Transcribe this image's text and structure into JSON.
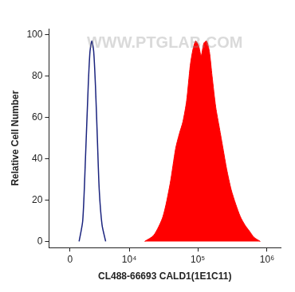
{
  "chart_data": {
    "type": "histogram",
    "x_label": "CL488-66693 CALD1(1E1C11)",
    "y_label": "Relative Cell Number",
    "annotations": [
      "WWW.PTGLAB.COM"
    ],
    "log": "x",
    "grid": false,
    "xlim": [
      -2150,
      1570000
    ],
    "xticks": [
      0,
      {
        "value": 10000,
        "label": "10⁴"
      },
      {
        "value": 100000,
        "label": "10⁵"
      },
      {
        "value": 1000000,
        "label": "10⁶"
      }
    ],
    "ylim": [
      -3,
      103
    ],
    "yticks": [
      0,
      20,
      40,
      60,
      80,
      100
    ],
    "series": [
      {
        "type": "line",
        "color": "#1a237e",
        "x": [
          875,
          1241,
          1528,
          1829,
          2036,
          2255,
          2479,
          2709,
          2959,
          3221,
          3638,
          4223
        ],
        "values": [
          0,
          10,
          40,
          75,
          92,
          97,
          92,
          75,
          50,
          25,
          8,
          0
        ]
      },
      {
        "type": "area",
        "color": "#ff0000",
        "x": [
          16900,
          23000,
          31200,
          39700,
          47700,
          53800,
          60800,
          68700,
          77500,
          84900,
          92900,
          102000,
          111600,
          122100,
          133800,
          146500,
          160500,
          181200,
          204500,
          230900,
          260700,
          303300,
          352700,
          410700,
          477400,
          555800,
          646400,
          798000
        ],
        "values": [
          0,
          3,
          12,
          28,
          45,
          52,
          58,
          68,
          85,
          93,
          97,
          95,
          90,
          96,
          97,
          92,
          80,
          65,
          55,
          45,
          35,
          25,
          18,
          12,
          8,
          5,
          2,
          0
        ]
      }
    ]
  }
}
